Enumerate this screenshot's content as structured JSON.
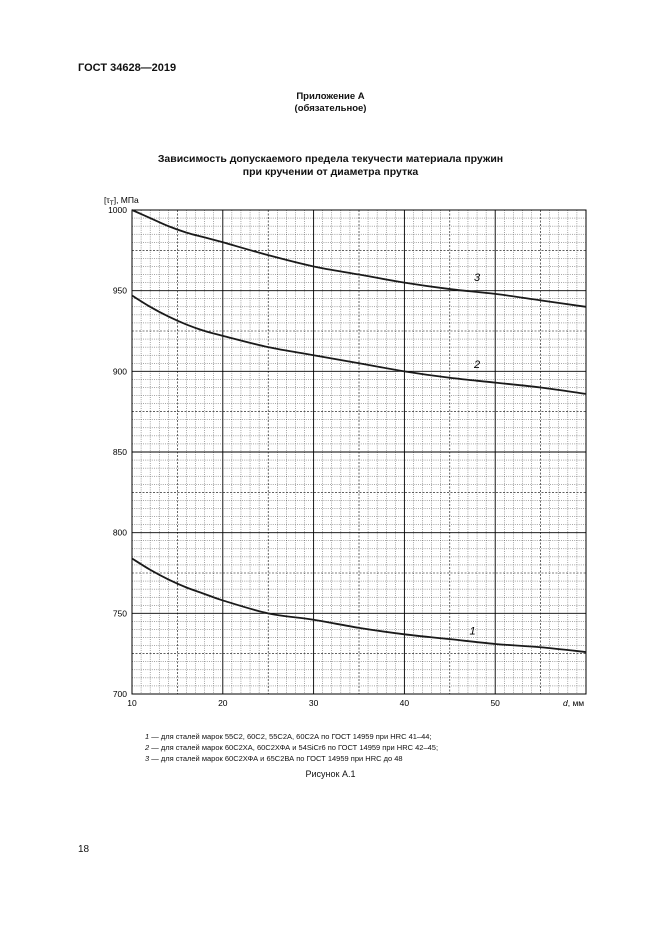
{
  "document": {
    "code": "ГОСТ 34628—2019",
    "appendix_title": "Приложение А",
    "appendix_note": "(обязательное)",
    "figure_caption": "Рисунок А.1",
    "page_number": "18"
  },
  "chart_data": {
    "type": "line",
    "title_line1": "Зависимость допускаемого предела текучести материала пружин",
    "title_line2": "при кручении от диаметра прутка",
    "ylabel_main": "[τ",
    "ylabel_sub": "Т",
    "ylabel_unit": "], МПа",
    "xlabel": "d",
    "xlabel_unit": ", мм",
    "xlim": [
      10,
      60
    ],
    "ylim": [
      700,
      1000
    ],
    "x_ticks": [
      10,
      20,
      30,
      40,
      50
    ],
    "y_ticks": [
      700,
      750,
      800,
      850,
      900,
      950,
      1000
    ],
    "grid": true,
    "series": [
      {
        "name": "1",
        "label_at": [
          47.5,
          737
        ],
        "x": [
          10,
          12,
          14,
          16,
          18,
          20,
          25,
          30,
          35,
          40,
          45,
          50,
          55,
          60
        ],
        "y": [
          784,
          777,
          771,
          766,
          762,
          758,
          750,
          746,
          741,
          737,
          734,
          731,
          729,
          726
        ]
      },
      {
        "name": "2",
        "label_at": [
          48,
          902
        ],
        "x": [
          10,
          12,
          14,
          16,
          18,
          20,
          25,
          30,
          35,
          40,
          45,
          50,
          55,
          60
        ],
        "y": [
          947,
          940,
          934,
          929,
          925,
          922,
          915,
          910,
          905,
          900,
          896,
          893,
          890,
          886
        ]
      },
      {
        "name": "3",
        "label_at": [
          48,
          956
        ],
        "x": [
          10,
          12,
          14,
          16,
          18,
          20,
          25,
          30,
          35,
          40,
          45,
          50,
          55,
          60
        ],
        "y": [
          1000,
          995,
          990,
          986,
          983,
          980,
          972,
          965,
          960,
          955,
          951,
          948,
          944,
          940
        ]
      }
    ],
    "legend": [
      {
        "num": "1",
        "text": " — для сталей марок 55С2, 60С2, 55С2А, 60С2А по ГОСТ 14959 при HRC 41–44;"
      },
      {
        "num": "2",
        "text": " — для сталей марок 60С2ХА, 60С2ХФА и 54SiCr6 по ГОСТ 14959 при HRC 42–45;"
      },
      {
        "num": "3",
        "text": " — для сталей марок 60С2ХФА и 65С2ВА по ГОСТ 14959 при HRC до 48"
      }
    ]
  }
}
